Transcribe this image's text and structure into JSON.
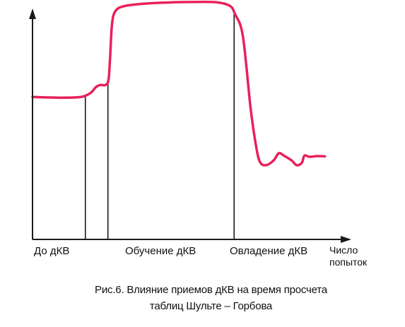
{
  "chart_data": {
    "type": "line",
    "title": "Рис.6. Влияние приемов дКВ на время просчета",
    "title_line2": "таблиц Шульте – Горбова",
    "xlabel_line1": "Число",
    "xlabel_line2": "попыток",
    "ylabel": "",
    "phases": [
      {
        "label": "До дКВ",
        "x_start": 0,
        "x_end": 10.3
      },
      {
        "label": "Обучение дКВ",
        "x_start": 10.3,
        "x_end": 39.3
      },
      {
        "label": "Овладение дКВ",
        "x_start": 39.3,
        "x_end": 58
      }
    ],
    "phase_dividers": [
      10.3,
      14.7,
      39.3
    ],
    "xlim": [
      0,
      62
    ],
    "ylim": [
      0,
      100
    ],
    "grid": false,
    "line_color": "#e8215a",
    "axis_color": "#1a1a1a",
    "series": [
      {
        "values": [
          [
            0,
            59.5
          ],
          [
            3,
            59.3
          ],
          [
            6,
            59.2
          ],
          [
            9,
            59.4
          ],
          [
            10.3,
            60.0
          ],
          [
            11.5,
            61.5
          ],
          [
            12.3,
            63.5
          ],
          [
            13.2,
            64.5
          ],
          [
            14.2,
            64.5
          ],
          [
            14.8,
            66.5
          ],
          [
            15.1,
            75
          ],
          [
            15.5,
            90
          ],
          [
            16.2,
            95.5
          ],
          [
            18,
            97.5
          ],
          [
            22,
            98.5
          ],
          [
            27,
            99
          ],
          [
            32,
            99.2
          ],
          [
            36,
            99
          ],
          [
            38.5,
            97.5
          ],
          [
            39.5,
            94
          ],
          [
            41,
            85
          ],
          [
            42.5,
            55
          ],
          [
            43.5,
            40
          ],
          [
            44.3,
            32.5
          ],
          [
            45.5,
            31
          ],
          [
            47,
            33
          ],
          [
            48,
            36
          ],
          [
            49,
            35
          ],
          [
            50.5,
            33
          ],
          [
            51.5,
            31
          ],
          [
            52.5,
            32
          ],
          [
            53,
            35
          ],
          [
            54,
            34.5
          ],
          [
            55.5,
            34.8
          ],
          [
            57,
            34.7
          ]
        ]
      }
    ]
  }
}
